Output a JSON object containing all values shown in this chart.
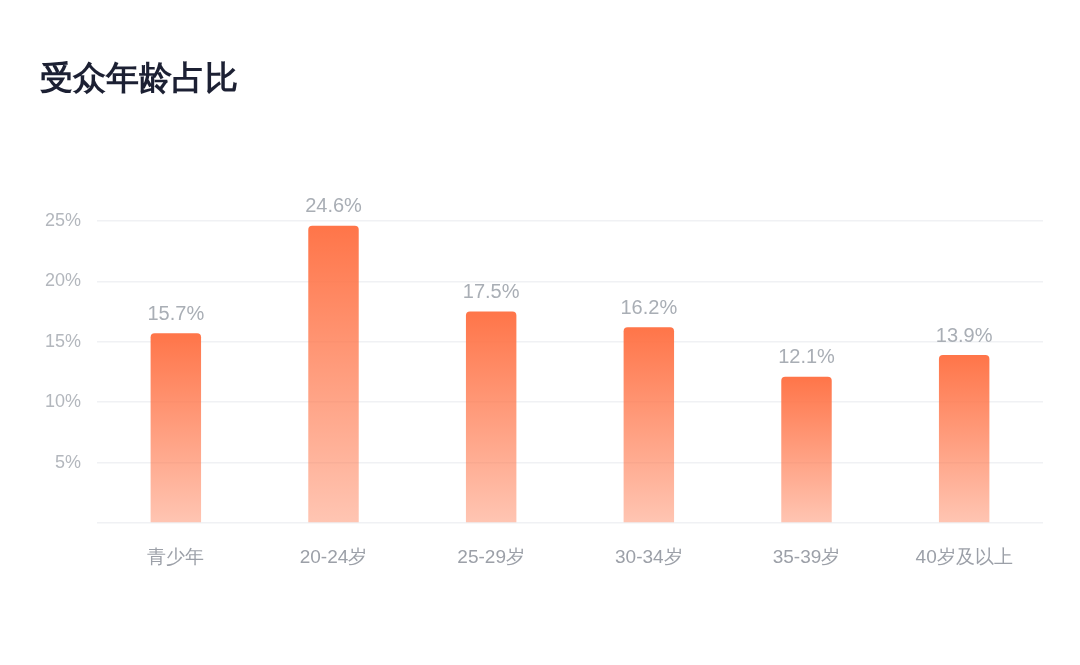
{
  "chart_data": {
    "type": "bar",
    "title": "受众年龄占比",
    "categories": [
      "青少年",
      "20-24岁",
      "25-29岁",
      "30-34岁",
      "35-39岁",
      "40岁及以上"
    ],
    "values": [
      15.7,
      24.6,
      17.5,
      16.2,
      12.1,
      13.9
    ],
    "value_labels": [
      "15.7%",
      "24.6%",
      "17.5%",
      "16.2%",
      "12.1%",
      "13.9%"
    ],
    "color": "#ff7549",
    "ylim": [
      0,
      25
    ],
    "yticks": [
      {
        "value": 0,
        "label": null
      },
      {
        "value": 5,
        "label": "5%"
      },
      {
        "value": 10,
        "label": "10%"
      },
      {
        "value": 15,
        "label": "15%"
      },
      {
        "value": 20,
        "label": "20%"
      },
      {
        "value": 25,
        "label": "25%"
      }
    ],
    "grid": "y"
  }
}
